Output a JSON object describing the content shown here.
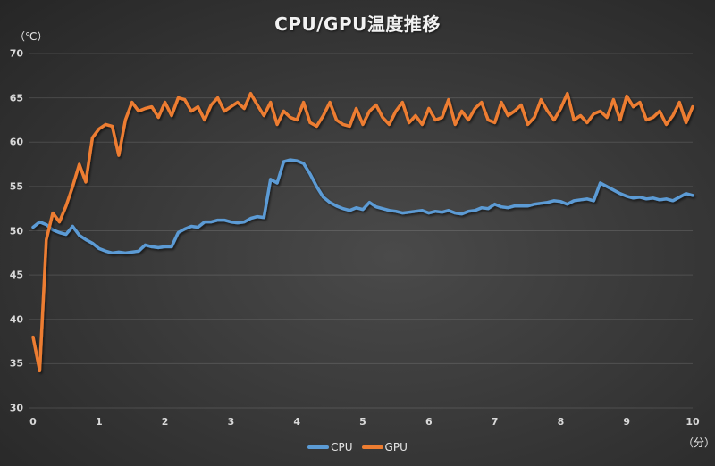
{
  "chart_data": {
    "type": "line",
    "title": "CPU/GPU温度推移",
    "xlabel": "（分）",
    "ylabel": "（℃）",
    "xlim": [
      0,
      10
    ],
    "ylim": [
      30,
      70
    ],
    "x_ticks": [
      "0",
      "1",
      "2",
      "3",
      "4",
      "5",
      "6",
      "7",
      "8",
      "9",
      "10"
    ],
    "y_ticks": [
      "70",
      "65",
      "60",
      "55",
      "50",
      "45",
      "40",
      "35",
      "30"
    ],
    "grid": "horizontal",
    "legend_position": "bottom",
    "x": [
      0,
      0.1,
      0.2,
      0.3,
      0.4,
      0.5,
      0.6,
      0.7,
      0.8,
      0.9,
      1.0,
      1.1,
      1.2,
      1.3,
      1.4,
      1.5,
      1.6,
      1.7,
      1.8,
      1.9,
      2.0,
      2.1,
      2.2,
      2.3,
      2.4,
      2.5,
      2.6,
      2.7,
      2.8,
      2.9,
      3.0,
      3.1,
      3.2,
      3.3,
      3.4,
      3.5,
      3.6,
      3.7,
      3.8,
      3.9,
      4.0,
      4.1,
      4.2,
      4.3,
      4.4,
      4.5,
      4.6,
      4.7,
      4.8,
      4.9,
      5.0,
      5.1,
      5.2,
      5.3,
      5.4,
      5.5,
      5.6,
      5.7,
      5.8,
      5.9,
      6.0,
      6.1,
      6.2,
      6.3,
      6.4,
      6.5,
      6.6,
      6.7,
      6.8,
      6.9,
      7.0,
      7.1,
      7.2,
      7.3,
      7.4,
      7.5,
      7.6,
      7.7,
      7.8,
      7.9,
      8.0,
      8.1,
      8.2,
      8.3,
      8.4,
      8.5,
      8.6,
      8.7,
      8.8,
      8.9,
      9.0,
      9.1,
      9.2,
      9.3,
      9.4,
      9.5,
      9.6,
      9.7,
      9.8,
      9.9,
      10.0
    ],
    "series": [
      {
        "name": "CPU",
        "color": "#5b9bd5",
        "values": [
          50.4,
          51.0,
          50.7,
          50.1,
          49.8,
          49.6,
          50.5,
          49.5,
          49.0,
          48.6,
          48.0,
          47.7,
          47.5,
          47.6,
          47.5,
          47.6,
          47.7,
          48.4,
          48.2,
          48.1,
          48.2,
          48.2,
          49.8,
          50.2,
          50.5,
          50.4,
          51.0,
          51.0,
          51.2,
          51.2,
          51.0,
          50.9,
          51.0,
          51.4,
          51.6,
          51.5,
          55.8,
          55.4,
          57.8,
          58.0,
          57.9,
          57.6,
          56.4,
          55.0,
          53.8,
          53.2,
          52.8,
          52.5,
          52.3,
          52.6,
          52.4,
          53.2,
          52.7,
          52.5,
          52.3,
          52.2,
          52.0,
          52.1,
          52.2,
          52.3,
          52.0,
          52.2,
          52.1,
          52.3,
          52.0,
          51.9,
          52.2,
          52.3,
          52.6,
          52.5,
          53.0,
          52.7,
          52.6,
          52.8,
          52.8,
          52.8,
          53.0,
          53.1,
          53.2,
          53.4,
          53.3,
          53.0,
          53.4,
          53.5,
          53.6,
          53.4,
          55.4,
          55.0,
          54.6,
          54.2,
          53.9,
          53.7,
          53.8,
          53.6,
          53.7,
          53.5,
          53.6,
          53.4,
          53.8,
          54.2,
          54.0
        ]
      },
      {
        "name": "GPU",
        "color": "#ed7d31",
        "values": [
          38.0,
          34.2,
          49.0,
          52.0,
          51.0,
          52.8,
          55.0,
          57.5,
          55.5,
          60.5,
          61.5,
          62.0,
          61.8,
          58.5,
          62.5,
          64.5,
          63.5,
          63.8,
          64.0,
          62.8,
          64.5,
          63.0,
          65.0,
          64.8,
          63.5,
          64.0,
          62.5,
          64.2,
          65.0,
          63.5,
          64.0,
          64.5,
          63.8,
          65.5,
          64.2,
          63.0,
          64.5,
          62.0,
          63.5,
          62.8,
          62.5,
          64.5,
          62.2,
          61.8,
          63.0,
          64.5,
          62.5,
          62.0,
          61.8,
          63.8,
          62.0,
          63.5,
          64.2,
          62.8,
          62.0,
          63.5,
          64.5,
          62.2,
          63.0,
          62.0,
          63.8,
          62.5,
          62.8,
          64.8,
          62.0,
          63.5,
          62.5,
          63.8,
          64.5,
          62.5,
          62.2,
          64.5,
          63.0,
          63.5,
          64.2,
          62.0,
          62.8,
          64.8,
          63.5,
          62.5,
          63.8,
          65.5,
          62.5,
          63.0,
          62.2,
          63.2,
          63.5,
          62.8,
          64.8,
          62.5,
          65.2,
          64.0,
          64.5,
          62.5,
          62.8,
          63.5,
          62.0,
          63.0,
          64.5,
          62.2,
          64.0
        ]
      }
    ]
  },
  "legend": [
    {
      "label": "CPU",
      "color": "#5b9bd5"
    },
    {
      "label": "GPU",
      "color": "#ed7d31"
    }
  ]
}
